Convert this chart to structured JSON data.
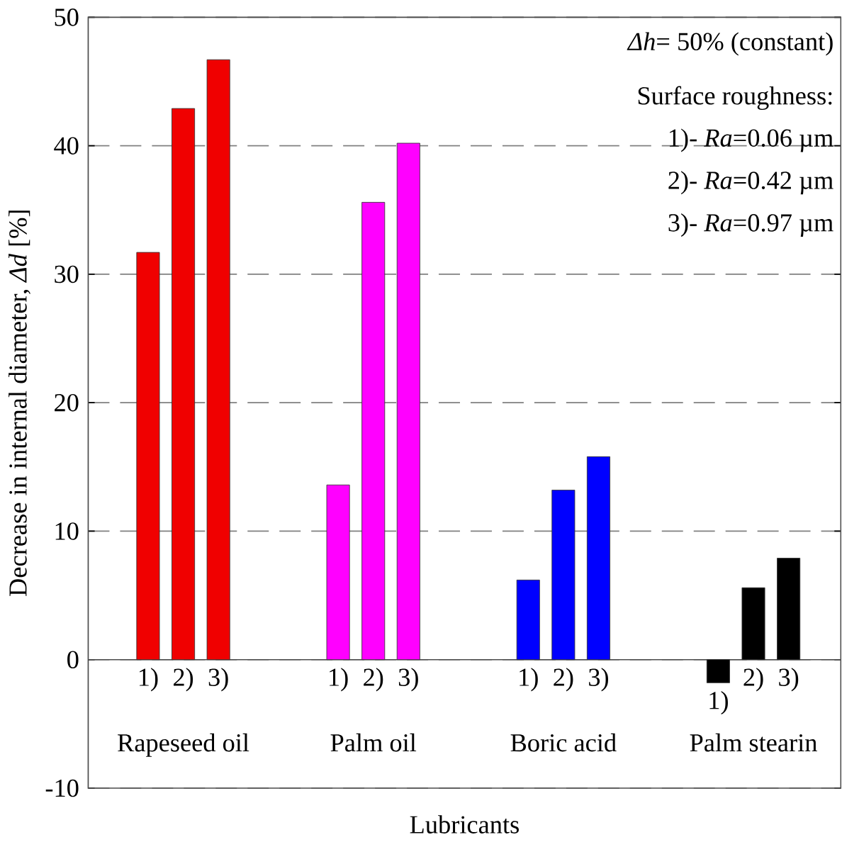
{
  "chart_data": {
    "type": "bar",
    "xlabel": "Lubricants",
    "ylabel": "Decrease in internal diameter, *Δd* [%]",
    "categories": [
      "Rapeseed oil",
      "Palm oil",
      "Boric acid",
      "Palm stearin"
    ],
    "series": [
      {
        "name": "1)",
        "colors": [
          "#f00000",
          "#ff00ff",
          "#0000ff",
          "#000000"
        ],
        "values": [
          31.7,
          13.6,
          6.2,
          -1.8
        ]
      },
      {
        "name": "2)",
        "colors": [
          "#f00000",
          "#ff00ff",
          "#0000ff",
          "#000000"
        ],
        "values": [
          42.9,
          35.6,
          13.2,
          5.6
        ]
      },
      {
        "name": "3)",
        "colors": [
          "#f00000",
          "#ff00ff",
          "#0000ff",
          "#000000"
        ],
        "values": [
          46.7,
          40.2,
          15.8,
          7.9
        ]
      }
    ],
    "ylim": [
      -10,
      50
    ],
    "yticks": [
      -10,
      0,
      10,
      20,
      30,
      40,
      50
    ],
    "grid": "y",
    "ref_lines": [
      {
        "axis": "y",
        "value": 0,
        "line_style": "solid"
      }
    ],
    "annotations": [
      "*Δh*= 50% (constant)",
      "Surface roughness:",
      "1)- *Ra*=0.06 µm",
      "2)- *Ra*=0.42 µm",
      "3)- *Ra*=0.97 µm"
    ]
  }
}
